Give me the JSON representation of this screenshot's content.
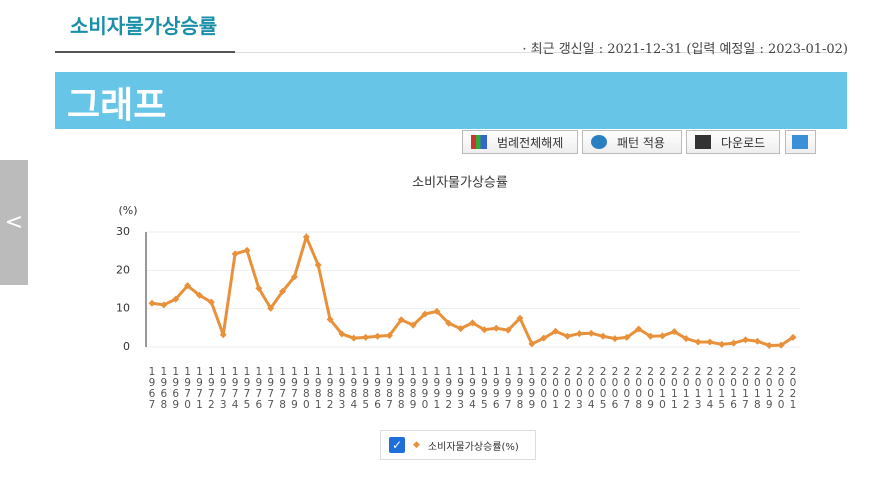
{
  "header": {
    "title": "소비자물가상승률",
    "update": "· 최근 갱신일 : 2021-12-31 (입력 예정일 : 2023-01-02)",
    "banner": "그래프"
  },
  "buttons": [
    "범례전체해제",
    "패턴 적용",
    "다운로드"
  ],
  "chart_data": {
    "type": "line",
    "title": "소비자물가상승률",
    "y_label": "(%)",
    "categories": [
      "1967",
      "1968",
      "1969",
      "1970",
      "1971",
      "1972",
      "1973",
      "1974",
      "1975",
      "1976",
      "1977",
      "1978",
      "1979",
      "1980",
      "1981",
      "1982",
      "1983",
      "1984",
      "1985",
      "1986",
      "1987",
      "1988",
      "1989",
      "1990",
      "1991",
      "1992",
      "1993",
      "1994",
      "1995",
      "1996",
      "1997",
      "1998",
      "1999",
      "2000",
      "2001",
      "2002",
      "2003",
      "2004",
      "2005",
      "2006",
      "2007",
      "2008",
      "2009",
      "2010",
      "2011",
      "2012",
      "2013",
      "2014",
      "2015",
      "2016",
      "2017",
      "2018",
      "2019",
      "2020",
      "2021"
    ],
    "series": [
      {
        "name": "소비자물가상승률(%)",
        "color": "#e8913a",
        "values": [
          11.4,
          11,
          12.5,
          16,
          13.5,
          11.7,
          3.2,
          24.3,
          25.2,
          15.3,
          10.1,
          14.5,
          18.3,
          28.7,
          21.4,
          7.2,
          3.4,
          2.3,
          2.5,
          2.8,
          3.0,
          7.1,
          5.7,
          8.6,
          9.3,
          6.2,
          4.8,
          6.3,
          4.5,
          4.9,
          4.4,
          7.5,
          0.8,
          2.3,
          4.1,
          2.8,
          3.5,
          3.6,
          2.8,
          2.2,
          2.5,
          4.7,
          2.8,
          2.9,
          4.0,
          2.2,
          1.3,
          1.3,
          0.7,
          1.0,
          1.9,
          1.5,
          0.4,
          0.5,
          2.5
        ]
      }
    ],
    "ylim": [
      0,
      30
    ],
    "yticks": [
      0,
      10,
      20,
      30
    ],
    "grid": true
  }
}
